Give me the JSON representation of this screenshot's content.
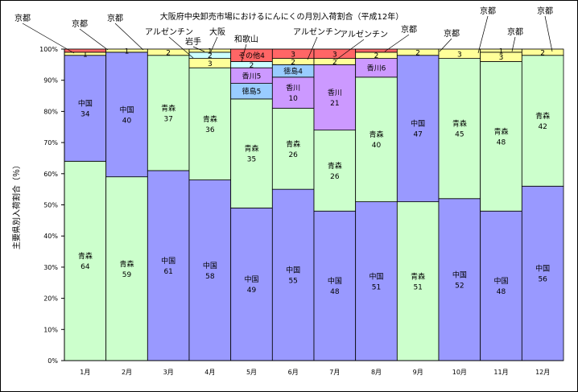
{
  "chart_data": {
    "type": "bar",
    "stacked": true,
    "title": "大阪府中央卸売市場におけるにんにくの月別入荷割合（平成12年）",
    "ylabel": "主要県別入荷割合（％）",
    "ylim": [
      0,
      100
    ],
    "yticks": [
      "0%",
      "10%",
      "20%",
      "30%",
      "40%",
      "50%",
      "60%",
      "70%",
      "80%",
      "90%",
      "100%"
    ],
    "categories": [
      "1月",
      "2月",
      "3月",
      "4月",
      "5月",
      "6月",
      "7月",
      "8月",
      "9月",
      "10月",
      "11月",
      "12月"
    ],
    "colors": {
      "青森": "#ccffcc",
      "中国": "#9999ff",
      "アルゼンチン": "#ffff99",
      "岩手": "#ccffff",
      "大阪": "#ffff99",
      "和歌山": "#ccffff",
      "その他": "#ff6666",
      "香川": "#cc99ff",
      "徳島": "#99ccff",
      "京都": "#ffff99"
    },
    "bars": [
      {
        "month": "1月",
        "segments": [
          {
            "name": "青森",
            "value": 64,
            "label": "青森",
            "show_value": "64"
          },
          {
            "name": "中国",
            "value": 34,
            "label": "中国",
            "show_value": "34"
          },
          {
            "name": "京都",
            "value": 1,
            "label": "",
            "show_value": "1"
          },
          {
            "name": "その他",
            "value": 1,
            "label": "",
            "show_value": ""
          }
        ]
      },
      {
        "month": "2月",
        "segments": [
          {
            "name": "青森",
            "value": 59,
            "label": "青森",
            "show_value": "59"
          },
          {
            "name": "中国",
            "value": 40,
            "label": "中国",
            "show_value": "40"
          },
          {
            "name": "京都",
            "value": 1,
            "label": "",
            "show_value": "1"
          }
        ]
      },
      {
        "month": "3月",
        "segments": [
          {
            "name": "中国",
            "value": 61,
            "label": "中国",
            "show_value": "61"
          },
          {
            "name": "青森",
            "value": 37,
            "label": "青森",
            "show_value": "37"
          },
          {
            "name": "アルゼンチン",
            "value": 2,
            "label": "",
            "show_value": "2"
          }
        ]
      },
      {
        "month": "4月",
        "segments": [
          {
            "name": "中国",
            "value": 58,
            "label": "中国",
            "show_value": "58"
          },
          {
            "name": "青森",
            "value": 36,
            "label": "青森",
            "show_value": "36"
          },
          {
            "name": "アルゼンチン",
            "value": 3,
            "label": "",
            "show_value": "3"
          },
          {
            "name": "岩手",
            "value": 2,
            "label": "",
            "show_value": "2"
          },
          {
            "name": "大阪",
            "value": 1,
            "label": "",
            "show_value": "1"
          }
        ]
      },
      {
        "month": "5月",
        "segments": [
          {
            "name": "中国",
            "value": 49,
            "label": "中国",
            "show_value": "49"
          },
          {
            "name": "青森",
            "value": 35,
            "label": "青森",
            "show_value": "35"
          },
          {
            "name": "徳島",
            "value": 5,
            "label": "徳島5",
            "show_value": ""
          },
          {
            "name": "香川",
            "value": 5,
            "label": "香川5",
            "show_value": ""
          },
          {
            "name": "和歌山",
            "value": 2,
            "label": "",
            "show_value": "2"
          },
          {
            "name": "その他",
            "value": 4,
            "label": "その他4",
            "show_value": ""
          }
        ]
      },
      {
        "month": "6月",
        "segments": [
          {
            "name": "中国",
            "value": 55,
            "label": "中国",
            "show_value": "55"
          },
          {
            "name": "青森",
            "value": 26,
            "label": "青森",
            "show_value": "26"
          },
          {
            "name": "香川",
            "value": 10,
            "label": "香川",
            "show_value": "10"
          },
          {
            "name": "徳島",
            "value": 4,
            "label": "徳島4",
            "show_value": ""
          },
          {
            "name": "アルゼンチン",
            "value": 2,
            "label": "",
            "show_value": "2"
          },
          {
            "name": "その他",
            "value": 3,
            "label": "",
            "show_value": "3"
          }
        ]
      },
      {
        "month": "7月",
        "segments": [
          {
            "name": "中国",
            "value": 48,
            "label": "中国",
            "show_value": "48"
          },
          {
            "name": "青森",
            "value": 26,
            "label": "青森",
            "show_value": "26"
          },
          {
            "name": "香川",
            "value": 21,
            "label": "香川",
            "show_value": "21"
          },
          {
            "name": "アルゼンチン",
            "value": 2,
            "label": "",
            "show_value": "2"
          },
          {
            "name": "その他",
            "value": 3,
            "label": "",
            "show_value": "3"
          }
        ]
      },
      {
        "month": "8月",
        "segments": [
          {
            "name": "中国",
            "value": 51,
            "label": "中国",
            "show_value": "51"
          },
          {
            "name": "青森",
            "value": 40,
            "label": "青森",
            "show_value": "40"
          },
          {
            "name": "香川",
            "value": 6,
            "label": "香川6",
            "show_value": ""
          },
          {
            "name": "京都",
            "value": 2,
            "label": "",
            "show_value": "2"
          },
          {
            "name": "その他",
            "value": 1,
            "label": "",
            "show_value": ""
          }
        ]
      },
      {
        "month": "9月",
        "segments": [
          {
            "name": "青森",
            "value": 51,
            "label": "青森",
            "show_value": "51"
          },
          {
            "name": "中国",
            "value": 47,
            "label": "中国",
            "show_value": "47"
          },
          {
            "name": "京都",
            "value": 2,
            "label": "",
            "show_value": "2"
          }
        ]
      },
      {
        "month": "10月",
        "segments": [
          {
            "name": "中国",
            "value": 52,
            "label": "中国",
            "show_value": "52"
          },
          {
            "name": "青森",
            "value": 45,
            "label": "青森",
            "show_value": "45"
          },
          {
            "name": "京都",
            "value": 3,
            "label": "",
            "show_value": "3"
          }
        ]
      },
      {
        "month": "11月",
        "segments": [
          {
            "name": "中国",
            "value": 48,
            "label": "中国",
            "show_value": "48"
          },
          {
            "name": "青森",
            "value": 48,
            "label": "青森",
            "show_value": "48"
          },
          {
            "name": "アルゼンチン",
            "value": 3,
            "label": "",
            "show_value": "3"
          },
          {
            "name": "京都",
            "value": 1,
            "label": "",
            "show_value": "1"
          }
        ]
      },
      {
        "month": "12月",
        "segments": [
          {
            "name": "中国",
            "value": 56,
            "label": "中国",
            "show_value": "56"
          },
          {
            "name": "青森",
            "value": 42,
            "label": "青森",
            "show_value": "42"
          },
          {
            "name": "京都",
            "value": 2,
            "label": "",
            "show_value": "2"
          }
        ]
      }
    ],
    "annotations": [
      {
        "text": "京都",
        "bar": "1月"
      },
      {
        "text": "京都",
        "bar": "1月"
      },
      {
        "text": "京都",
        "bar": "2月"
      },
      {
        "text": "アルゼンチン",
        "bar": "3月"
      },
      {
        "text": "岩手",
        "bar": "4月"
      },
      {
        "text": "大阪",
        "bar": "4月"
      },
      {
        "text": "和歌山",
        "bar": "5月"
      },
      {
        "text": "アルゼンチン",
        "bar": "6月"
      },
      {
        "text": "アルゼンチン",
        "bar": "7月"
      },
      {
        "text": "京都",
        "bar": "8月"
      },
      {
        "text": "京都",
        "bar": "9月"
      },
      {
        "text": "京都",
        "bar": "10月"
      },
      {
        "text": "京都",
        "bar": "11月"
      },
      {
        "text": "京都",
        "bar": "12月"
      }
    ]
  }
}
